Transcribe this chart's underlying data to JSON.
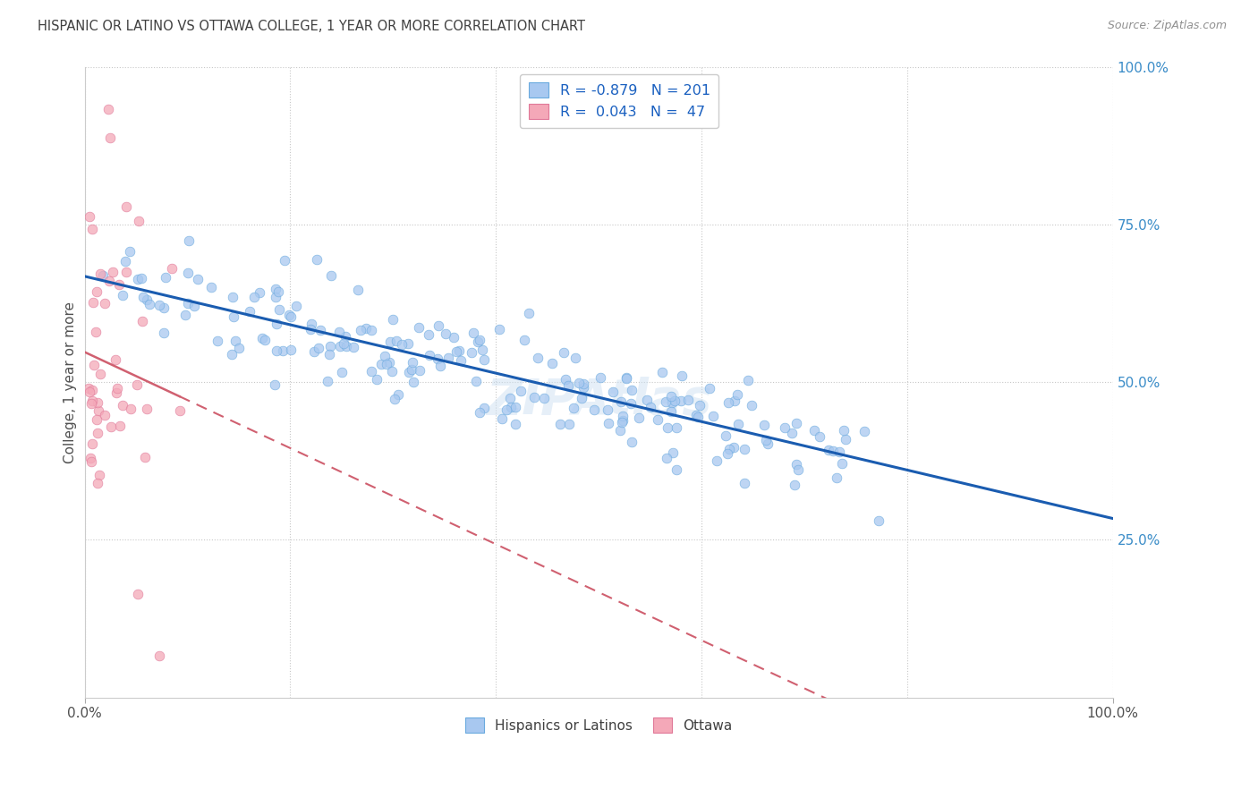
{
  "title": "HISPANIC OR LATINO VS OTTAWA COLLEGE, 1 YEAR OR MORE CORRELATION CHART",
  "source": "Source: ZipAtlas.com",
  "ylabel": "College, 1 year or more",
  "right_yticks": [
    "100.0%",
    "75.0%",
    "50.0%",
    "25.0%"
  ],
  "right_ytick_vals": [
    1.0,
    0.75,
    0.5,
    0.25
  ],
  "watermark": "ZIPAtlas",
  "legend_blue_label": "Hispanics or Latinos",
  "legend_pink_label": "Ottawa",
  "blue_R": -0.879,
  "blue_N": 201,
  "pink_R": 0.043,
  "pink_N": 47,
  "blue_scatter_color": "#a8c8f0",
  "blue_scatter_edge": "#6aaade",
  "pink_scatter_color": "#f4a8b8",
  "pink_scatter_edge": "#e07898",
  "blue_line_color": "#1a5cb0",
  "pink_line_color": "#d06070",
  "background_color": "#ffffff",
  "grid_color": "#c8c8c8",
  "title_color": "#404040",
  "source_color": "#909090",
  "right_label_color": "#3a8cc8",
  "legend_text_color": "#1a60c0",
  "seed_blue": 12,
  "seed_pink": 99,
  "xlim": [
    0,
    1
  ],
  "ylim": [
    0,
    1
  ]
}
